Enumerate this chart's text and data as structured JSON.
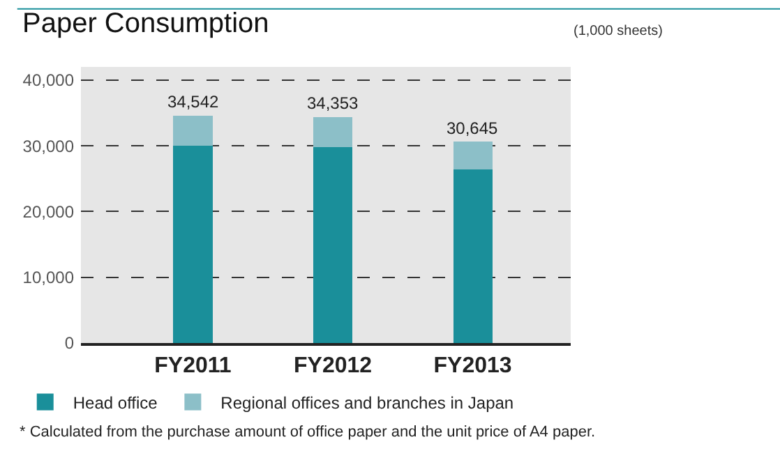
{
  "chart_data": {
    "type": "bar",
    "title": "Paper Consumption",
    "subtitle": "(1,000 sheets)",
    "categories": [
      "FY2011",
      "FY2012",
      "FY2013"
    ],
    "stacked": true,
    "series": [
      {
        "name": "Head office",
        "color": "#1a8f9a",
        "values": [
          30000,
          29800,
          26400
        ]
      },
      {
        "name": "Regional offices and branches in Japan",
        "color": "#8cbfc8",
        "values": [
          4542,
          4553,
          4245
        ]
      }
    ],
    "totals": [
      "34,542",
      "34,353",
      "30,645"
    ],
    "ylim": [
      0,
      42000
    ],
    "yticks": [
      {
        "value": 0,
        "label": "0"
      },
      {
        "value": 10000,
        "label": "10,000"
      },
      {
        "value": 20000,
        "label": "20,000"
      },
      {
        "value": 30000,
        "label": "30,000"
      },
      {
        "value": 40000,
        "label": "40,000"
      }
    ],
    "grid": "y",
    "legend": "bottom",
    "annotations": [
      "* Calculated from the purchase amount of office paper and the unit price of A4 paper."
    ]
  }
}
